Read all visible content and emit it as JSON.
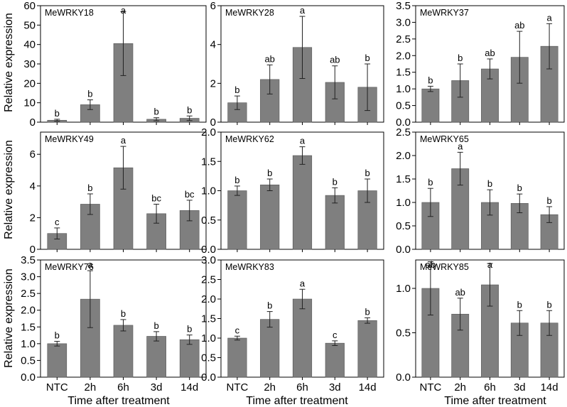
{
  "chart_data": {
    "type": "bar",
    "categories": [
      "NTC",
      "2h",
      "6h",
      "3d",
      "14d"
    ],
    "ylabel": "Relative expression",
    "xlabel": "Time after treatment",
    "panels": [
      {
        "title": "MeWRKY18",
        "ylim": [
          0,
          60
        ],
        "ticks": [
          "0",
          "10",
          "20",
          "30",
          "40",
          "50",
          "60"
        ],
        "values": [
          1,
          9,
          40.5,
          1.5,
          2
        ],
        "errors": [
          0.5,
          2.5,
          16.5,
          0.8,
          1.2
        ],
        "letters": [
          "b",
          "b",
          "a",
          "b",
          "b"
        ]
      },
      {
        "title": "MeWRKY28",
        "ylim": [
          0,
          6
        ],
        "ticks": [
          "0",
          "2",
          "4",
          "6"
        ],
        "values": [
          1,
          2.2,
          3.85,
          2.05,
          1.8
        ],
        "errors": [
          0.35,
          0.75,
          1.6,
          0.85,
          1.2
        ],
        "letters": [
          "b",
          "ab",
          "a",
          "ab",
          "b"
        ]
      },
      {
        "title": "MeWRKY37",
        "ylim": [
          0,
          3.5
        ],
        "ticks": [
          "0.0",
          "0.5",
          "1.0",
          "1.5",
          "2.0",
          "2.5",
          "3.0",
          "3.5"
        ],
        "values": [
          1,
          1.25,
          1.6,
          1.95,
          2.28
        ],
        "errors": [
          0.08,
          0.5,
          0.3,
          0.78,
          0.68
        ],
        "letters": [
          "b",
          "b",
          "ab",
          "ab",
          "a"
        ]
      },
      {
        "title": "MeWRKY49",
        "ylim": [
          0,
          7.4
        ],
        "ticks": [
          "0",
          "2",
          "4",
          "6"
        ],
        "values": [
          1,
          2.85,
          5.15,
          2.25,
          2.45
        ],
        "errors": [
          0.35,
          0.65,
          1.35,
          0.6,
          0.65
        ],
        "letters": [
          "c",
          "b",
          "a",
          "bc",
          "bc"
        ]
      },
      {
        "title": "MeWRKY62",
        "ylim": [
          0,
          2.0
        ],
        "ticks": [
          "0.0",
          "0.5",
          "1.0",
          "1.5",
          "2.0"
        ],
        "values": [
          1,
          1.1,
          1.6,
          0.92,
          1.0
        ],
        "errors": [
          0.08,
          0.1,
          0.15,
          0.13,
          0.2
        ],
        "letters": [
          "b",
          "b",
          "a",
          "b",
          "b"
        ]
      },
      {
        "title": "MeWRKY65",
        "ylim": [
          0,
          2.5
        ],
        "ticks": [
          "0.0",
          "0.5",
          "1.0",
          "1.5",
          "2.0",
          "2.5"
        ],
        "values": [
          1,
          1.72,
          1.0,
          0.98,
          0.74
        ],
        "errors": [
          0.3,
          0.35,
          0.27,
          0.2,
          0.17
        ],
        "letters": [
          "b",
          "a",
          "b",
          "b",
          "b"
        ]
      },
      {
        "title": "MeWRKY76",
        "ylim": [
          0,
          3.5
        ],
        "ticks": [
          "0.0",
          "0.5",
          "1.0",
          "1.5",
          "2.0",
          "2.5",
          "3.0",
          "3.5"
        ],
        "values": [
          1,
          2.33,
          1.55,
          1.22,
          1.12
        ],
        "errors": [
          0.07,
          0.85,
          0.17,
          0.14,
          0.14
        ],
        "letters": [
          "b",
          "a",
          "b",
          "b",
          "b"
        ]
      },
      {
        "title": "MeWRKY83",
        "ylim": [
          0,
          3.0
        ],
        "ticks": [
          "0.0",
          "0.5",
          "1.0",
          "1.5",
          "2.0",
          "2.5",
          "3.0"
        ],
        "values": [
          1,
          1.48,
          2.0,
          0.87,
          1.45
        ],
        "errors": [
          0.05,
          0.2,
          0.25,
          0.06,
          0.07
        ],
        "letters": [
          "c",
          "b",
          "a",
          "c",
          "b"
        ]
      },
      {
        "title": "MeWRKY85",
        "ylim": [
          0,
          1.32
        ],
        "ticks": [
          "0.0",
          "0.5",
          "1.0"
        ],
        "values": [
          1.0,
          0.71,
          1.04,
          0.61,
          0.61
        ],
        "errors": [
          0.3,
          0.18,
          0.24,
          0.14,
          0.14
        ],
        "letters": [
          "ab",
          "ab",
          "a",
          "b",
          "b"
        ]
      }
    ]
  }
}
